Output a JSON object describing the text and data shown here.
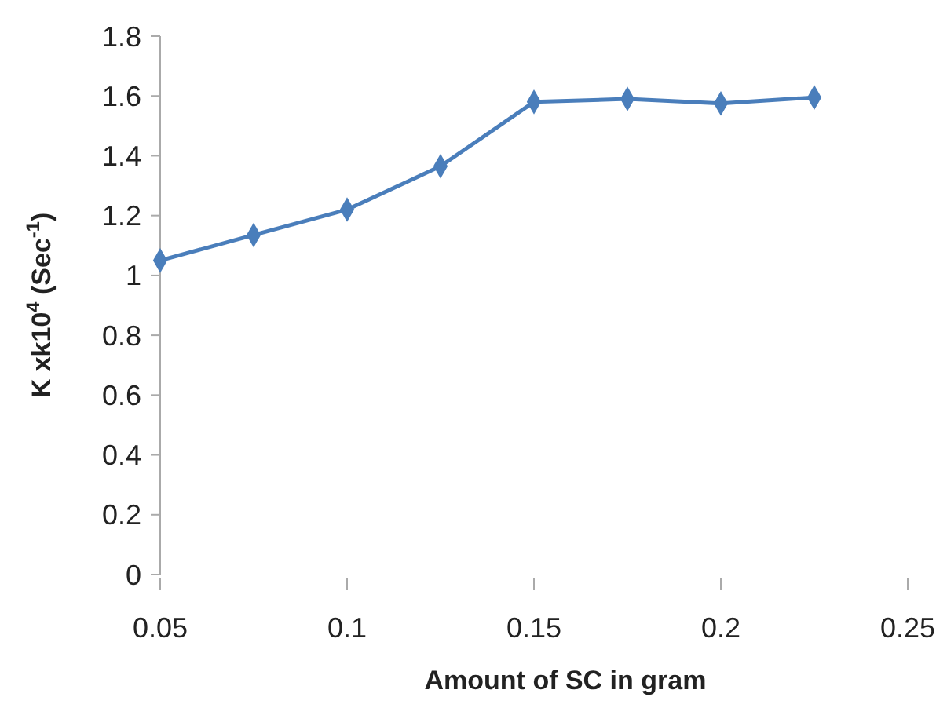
{
  "chart_data": {
    "type": "line",
    "xlabel": "Amount of SC in gram",
    "ylabel": "K xk10$^{4}$ (Sec$^{-1}$)",
    "x": [
      0.05,
      0.075,
      0.1,
      0.125,
      0.15,
      0.175,
      0.2,
      0.225
    ],
    "series": [
      {
        "color": "#4a7ebb",
        "values": [
          1.05,
          1.135,
          1.22,
          1.365,
          1.58,
          1.59,
          1.575,
          1.595
        ]
      }
    ],
    "xlim": [
      0.05,
      0.25
    ],
    "xticks": [
      0.05,
      0.1,
      0.15,
      0.2,
      0.25
    ],
    "ylim": [
      0,
      1.8
    ],
    "yticks": [
      0,
      0.2,
      0.4,
      0.6,
      0.8,
      1,
      1.2,
      1.4,
      1.6,
      1.8
    ],
    "grid": false,
    "marker": "diamond",
    "line_style": "solid"
  }
}
